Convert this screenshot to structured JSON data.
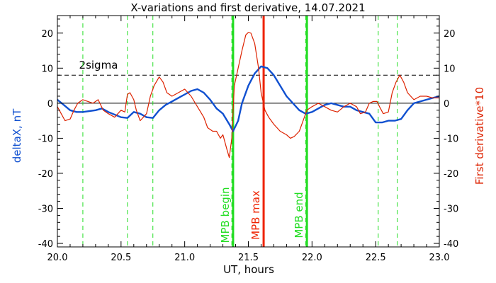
{
  "chart_data": {
    "type": "line",
    "title": "X-variations and first derivative, 14.07.2021",
    "xlabel": "UT, hours",
    "ylabel_left": "deltaX, nT",
    "ylabel_right": "First derivative*10",
    "xlim": [
      20.0,
      23.0
    ],
    "ylim": [
      -41,
      25
    ],
    "x_ticks": [
      "20.0",
      "20.5",
      "21.0",
      "21.5",
      "22.0",
      "22.5",
      "23.0"
    ],
    "y_ticks_left": [
      "-40",
      "-30",
      "-20",
      "-10",
      "0",
      "10",
      "20"
    ],
    "y_ticks_right": [
      "-40",
      "-30",
      "-20",
      "-10",
      "0",
      "10",
      "20"
    ],
    "colors": {
      "deltaX": "#1050d0",
      "derivative": "#dd2200",
      "mpb_boundary": "#22dd22",
      "mpb_max": "#ee2200",
      "axis": "#000000"
    },
    "threshold": {
      "label": "2sigma",
      "value": 8
    },
    "reference_lines": {
      "green_dashed_x": [
        20.2,
        20.55,
        20.75,
        21.37,
        21.95,
        22.52,
        22.67
      ]
    },
    "annotations": [
      {
        "text": "MPB begin",
        "x": 21.38,
        "color": "#22dd22"
      },
      {
        "text": "MPB max",
        "x": 21.62,
        "color": "#ee2200"
      },
      {
        "text": "MPB end",
        "x": 21.96,
        "color": "#22dd22"
      }
    ],
    "series": [
      {
        "name": "deltaX, nT",
        "axis": "left",
        "x": [
          20.0,
          20.05,
          20.1,
          20.15,
          20.2,
          20.3,
          20.35,
          20.4,
          20.5,
          20.55,
          20.6,
          20.65,
          20.7,
          20.75,
          20.8,
          20.85,
          20.9,
          20.95,
          21.0,
          21.05,
          21.1,
          21.15,
          21.2,
          21.25,
          21.3,
          21.35,
          21.38,
          21.42,
          21.45,
          21.5,
          21.55,
          21.6,
          21.65,
          21.7,
          21.75,
          21.8,
          21.85,
          21.9,
          21.95,
          22.0,
          22.05,
          22.1,
          22.15,
          22.2,
          22.25,
          22.3,
          22.35,
          22.4,
          22.45,
          22.5,
          22.55,
          22.6,
          22.65,
          22.7,
          22.75,
          22.8,
          22.85,
          22.9,
          22.95,
          23.0
        ],
        "values": [
          1,
          -0.5,
          -2,
          -2.5,
          -2.5,
          -2,
          -1.5,
          -2.5,
          -4,
          -4.2,
          -2.5,
          -3,
          -4,
          -4.2,
          -2,
          -0.5,
          0.5,
          1.5,
          2.5,
          3.5,
          4,
          3,
          1,
          -1.5,
          -3,
          -6,
          -8,
          -5,
          0,
          5,
          8.5,
          10.5,
          10,
          8,
          5,
          2,
          0,
          -2,
          -3,
          -2.5,
          -1.5,
          -0.5,
          0,
          -0.5,
          -1,
          -1,
          -2,
          -2.5,
          -3,
          -5.5,
          -5.5,
          -5,
          -5,
          -4.5,
          -2,
          0,
          0.5,
          1,
          1.5,
          2
        ]
      },
      {
        "name": "First derivative*10",
        "axis": "right",
        "x": [
          20.0,
          20.03,
          20.06,
          20.1,
          20.13,
          20.16,
          20.2,
          20.24,
          20.28,
          20.32,
          20.36,
          20.4,
          20.45,
          20.5,
          20.53,
          20.55,
          20.57,
          20.6,
          20.62,
          20.65,
          20.7,
          20.73,
          20.76,
          20.8,
          20.83,
          20.86,
          20.9,
          20.95,
          21.0,
          21.05,
          21.1,
          21.15,
          21.18,
          21.22,
          21.25,
          21.28,
          21.3,
          21.33,
          21.35,
          21.37,
          21.39,
          21.42,
          21.45,
          21.48,
          21.5,
          21.52,
          21.55,
          21.58,
          21.6,
          21.63,
          21.66,
          21.7,
          21.75,
          21.8,
          21.83,
          21.86,
          21.9,
          21.93,
          21.96,
          22.0,
          22.05,
          22.1,
          22.15,
          22.2,
          22.25,
          22.3,
          22.35,
          22.38,
          22.42,
          22.45,
          22.48,
          22.51,
          22.53,
          22.56,
          22.6,
          22.63,
          22.66,
          22.69,
          22.72,
          22.75,
          22.8,
          22.85,
          22.9,
          22.95,
          23.0
        ],
        "values": [
          -1,
          -3,
          -5,
          -4.5,
          -2,
          0,
          1,
          0.5,
          0,
          1,
          -2,
          -3,
          -4,
          -2,
          -2.5,
          2.5,
          3,
          1,
          -2,
          -5,
          -3,
          2,
          5,
          7.5,
          6,
          3,
          2,
          3,
          4,
          2,
          -1,
          -4,
          -7,
          -8,
          -8,
          -10,
          -9,
          -13,
          -15.5,
          -10,
          5,
          10,
          15,
          19.5,
          20.2,
          20,
          17,
          10,
          3,
          -2,
          -4,
          -6,
          -8,
          -9,
          -10,
          -9.5,
          -8,
          -5,
          -2,
          -1,
          0,
          -1,
          -2,
          -2.5,
          -1,
          0,
          -1,
          -3,
          -2.5,
          0,
          0.5,
          0.5,
          -1,
          -3,
          -2.5,
          3,
          6,
          8,
          6,
          3,
          1,
          2,
          2,
          1.5,
          1.5
        ]
      }
    ]
  }
}
